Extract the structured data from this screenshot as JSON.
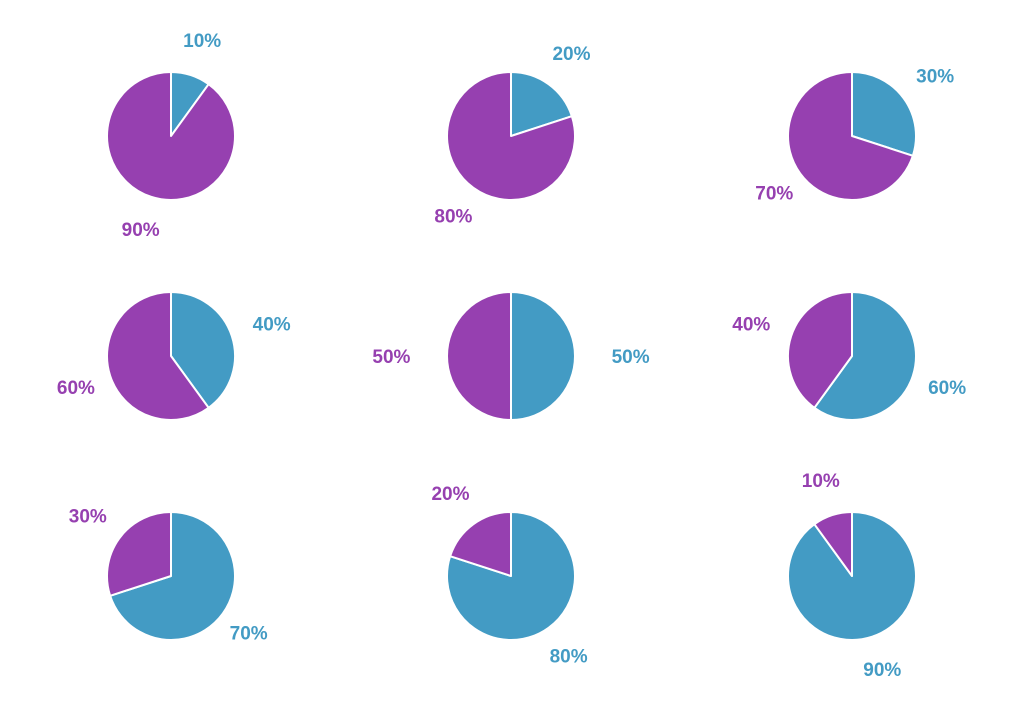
{
  "colors": {
    "blue": "#439bc4",
    "purple": "#9640b0",
    "background": "#ffffff"
  },
  "chart_data": [
    {
      "type": "pie",
      "slices": [
        {
          "value": 10,
          "label": "10%",
          "color": "#439bc4"
        },
        {
          "value": 90,
          "label": "90%",
          "color": "#9640b0"
        }
      ]
    },
    {
      "type": "pie",
      "slices": [
        {
          "value": 20,
          "label": "20%",
          "color": "#439bc4"
        },
        {
          "value": 80,
          "label": "80%",
          "color": "#9640b0"
        }
      ]
    },
    {
      "type": "pie",
      "slices": [
        {
          "value": 30,
          "label": "30%",
          "color": "#439bc4"
        },
        {
          "value": 70,
          "label": "70%",
          "color": "#9640b0"
        }
      ]
    },
    {
      "type": "pie",
      "slices": [
        {
          "value": 40,
          "label": "40%",
          "color": "#439bc4"
        },
        {
          "value": 60,
          "label": "60%",
          "color": "#9640b0"
        }
      ]
    },
    {
      "type": "pie",
      "slices": [
        {
          "value": 50,
          "label": "50%",
          "color": "#439bc4"
        },
        {
          "value": 50,
          "label": "50%",
          "color": "#9640b0"
        }
      ]
    },
    {
      "type": "pie",
      "slices": [
        {
          "value": 60,
          "label": "60%",
          "color": "#439bc4"
        },
        {
          "value": 40,
          "label": "40%",
          "color": "#9640b0"
        }
      ]
    },
    {
      "type": "pie",
      "slices": [
        {
          "value": 70,
          "label": "70%",
          "color": "#439bc4"
        },
        {
          "value": 30,
          "label": "30%",
          "color": "#9640b0"
        }
      ]
    },
    {
      "type": "pie",
      "slices": [
        {
          "value": 80,
          "label": "80%",
          "color": "#439bc4"
        },
        {
          "value": 20,
          "label": "20%",
          "color": "#9640b0"
        }
      ]
    },
    {
      "type": "pie",
      "slices": [
        {
          "value": 90,
          "label": "90%",
          "color": "#439bc4"
        },
        {
          "value": 10,
          "label": "10%",
          "color": "#9640b0"
        }
      ]
    }
  ]
}
